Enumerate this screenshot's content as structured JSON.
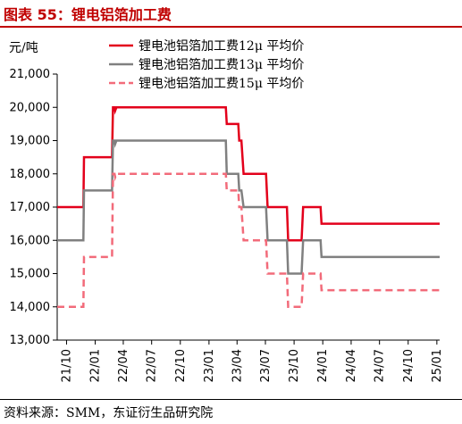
{
  "header": {
    "title": "图表 55：锂电铝箔加工费"
  },
  "footer": {
    "source": "资料来源：SMM，东证衍生品研究院"
  },
  "chart_data": {
    "type": "line",
    "title": "图表 55：锂电铝箔加工费",
    "ylabel": "元/吨",
    "xlabel": "",
    "ylim": [
      13000,
      21000
    ],
    "yticks": [
      13000,
      14000,
      15000,
      16000,
      17000,
      18000,
      19000,
      20000,
      21000
    ],
    "ytick_labels": [
      "13,000",
      "14,000",
      "15,000",
      "16,000",
      "17,000",
      "18,000",
      "19,000",
      "20,000",
      "21,000"
    ],
    "xlim": [
      "2021-09-01",
      "2025-01-10"
    ],
    "xtick_labels": [
      "21/10",
      "22/01",
      "22/04",
      "22/07",
      "22/10",
      "23/01",
      "23/04",
      "23/07",
      "23/10",
      "24/01",
      "24/04",
      "24/07",
      "24/10",
      "25/01"
    ],
    "xticks": [
      "2021-10-01",
      "2022-01-01",
      "2022-04-01",
      "2022-07-01",
      "2022-10-01",
      "2023-01-01",
      "2023-04-01",
      "2023-07-01",
      "2023-10-01",
      "2024-01-01",
      "2024-04-01",
      "2024-07-01",
      "2024-10-01",
      "2025-01-01"
    ],
    "legend_position": "top-right",
    "grid": false,
    "series": [
      {
        "name": "锂电池铝箔加工费12μ 平均价",
        "color": "#e3001b",
        "dash": "solid",
        "points": [
          [
            "2021-09-01",
            17000
          ],
          [
            "2021-11-24",
            17000
          ],
          [
            "2021-11-26",
            18500
          ],
          [
            "2022-02-24",
            18500
          ],
          [
            "2022-02-27",
            20000
          ],
          [
            "2022-03-04",
            20000
          ],
          [
            "2022-03-06",
            19900
          ],
          [
            "2022-03-10",
            20000
          ],
          [
            "2023-02-24",
            20000
          ],
          [
            "2023-02-27",
            19500
          ],
          [
            "2023-04-05",
            19500
          ],
          [
            "2023-04-08",
            19000
          ],
          [
            "2023-04-15",
            19000
          ],
          [
            "2023-04-22",
            18000
          ],
          [
            "2023-07-03",
            18000
          ],
          [
            "2023-07-08",
            17000
          ],
          [
            "2023-09-08",
            17000
          ],
          [
            "2023-09-12",
            16000
          ],
          [
            "2023-10-25",
            16000
          ],
          [
            "2023-10-30",
            17000
          ],
          [
            "2023-12-25",
            17000
          ],
          [
            "2023-12-28",
            16500
          ],
          [
            "2025-01-10",
            16500
          ]
        ]
      },
      {
        "name": "锂电池铝箔加工费13μ 平均价",
        "color": "#808080",
        "dash": "solid",
        "points": [
          [
            "2021-09-01",
            16000
          ],
          [
            "2021-11-24",
            16000
          ],
          [
            "2021-11-26",
            17500
          ],
          [
            "2022-02-24",
            17500
          ],
          [
            "2022-02-27",
            19000
          ],
          [
            "2022-03-04",
            19000
          ],
          [
            "2022-03-06",
            18900
          ],
          [
            "2022-03-10",
            19000
          ],
          [
            "2023-02-24",
            19000
          ],
          [
            "2023-02-27",
            18000
          ],
          [
            "2023-04-05",
            18000
          ],
          [
            "2023-04-08",
            17500
          ],
          [
            "2023-04-15",
            17500
          ],
          [
            "2023-04-22",
            17000
          ],
          [
            "2023-07-03",
            17000
          ],
          [
            "2023-07-08",
            16000
          ],
          [
            "2023-09-08",
            16000
          ],
          [
            "2023-09-12",
            15000
          ],
          [
            "2023-10-25",
            15000
          ],
          [
            "2023-10-30",
            16000
          ],
          [
            "2023-12-25",
            16000
          ],
          [
            "2023-12-28",
            15500
          ],
          [
            "2025-01-10",
            15500
          ]
        ]
      },
      {
        "name": "锂电池铝箔加工费15μ 平均价",
        "color": "#f26b7a",
        "dash": "dashed",
        "points": [
          [
            "2021-09-01",
            14000
          ],
          [
            "2021-11-24",
            14000
          ],
          [
            "2021-11-26",
            15500
          ],
          [
            "2022-02-24",
            15500
          ],
          [
            "2022-02-27",
            18000
          ],
          [
            "2022-03-04",
            18000
          ],
          [
            "2022-03-06",
            17900
          ],
          [
            "2022-03-10",
            18000
          ],
          [
            "2023-02-24",
            18000
          ],
          [
            "2023-02-27",
            17500
          ],
          [
            "2023-04-05",
            17500
          ],
          [
            "2023-04-08",
            17000
          ],
          [
            "2023-04-15",
            17000
          ],
          [
            "2023-04-22",
            16000
          ],
          [
            "2023-07-03",
            16000
          ],
          [
            "2023-07-08",
            15000
          ],
          [
            "2023-09-08",
            15000
          ],
          [
            "2023-09-12",
            14000
          ],
          [
            "2023-10-25",
            14000
          ],
          [
            "2023-10-30",
            15000
          ],
          [
            "2023-12-25",
            15000
          ],
          [
            "2023-12-28",
            14500
          ],
          [
            "2025-01-10",
            14500
          ]
        ]
      }
    ]
  }
}
